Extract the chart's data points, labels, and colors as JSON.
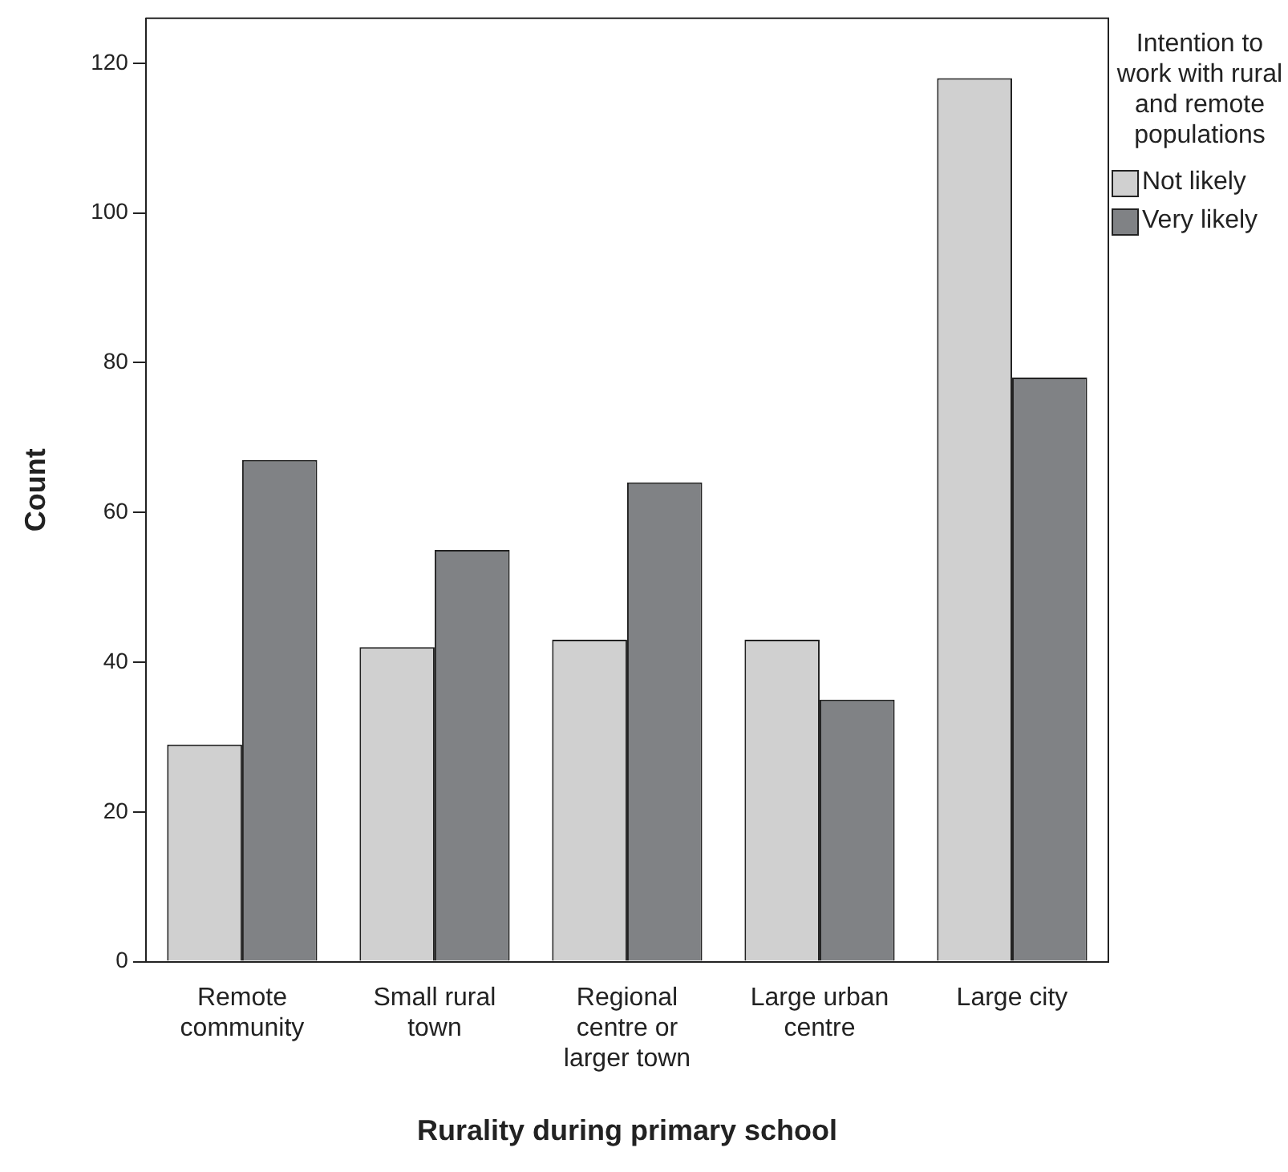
{
  "chart_data": {
    "type": "bar",
    "xlabel": "Rurality during primary school",
    "ylabel": "Count",
    "legend_title": "Intention to work with rural and remote populations",
    "categories": [
      "Remote community",
      "Small rural town",
      "Regional centre or larger town",
      "Large urban centre",
      "Large city"
    ],
    "series": [
      {
        "name": "Not likely",
        "color": "#d0d0d0",
        "values": [
          29,
          42,
          43,
          43,
          118
        ]
      },
      {
        "name": "Very likely",
        "color": "#808285",
        "values": [
          67,
          55,
          64,
          35,
          78
        ]
      }
    ],
    "ylim": [
      0,
      126
    ],
    "yticks": [
      0,
      20,
      40,
      60,
      80,
      100,
      120
    ],
    "grid": false,
    "legend": "top right"
  }
}
